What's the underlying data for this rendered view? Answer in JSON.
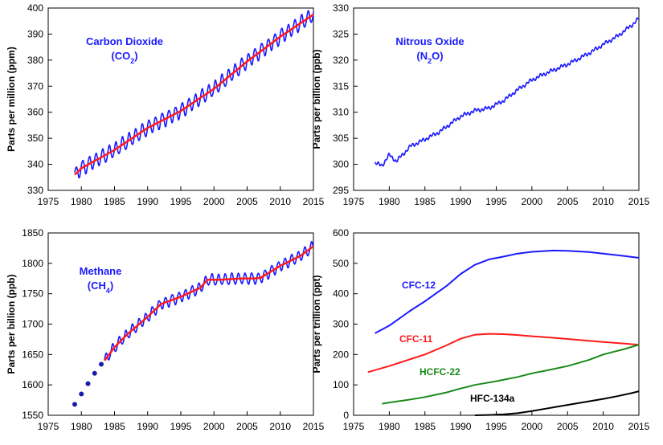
{
  "chart_data": [
    {
      "id": "co2",
      "type": "line",
      "ylabel": "Parts per million (ppm)",
      "xlim": [
        1975,
        2015
      ],
      "ylim": [
        330,
        400
      ],
      "xticks": [
        1975,
        1980,
        1985,
        1990,
        1995,
        2000,
        2005,
        2010,
        2015
      ],
      "yticks": [
        330,
        340,
        350,
        360,
        370,
        380,
        390,
        400
      ],
      "annotation": {
        "line1": "Carbon Dioxide",
        "line2_prefix": "(CO",
        "line2_sub": "2",
        "line2_suffix": ")"
      },
      "annotation_color": "#1a1aff",
      "series": [
        {
          "role": "monthly",
          "color": "#1a1aff",
          "x": [
            1979,
            1980,
            1985,
            1990,
            1995,
            2000,
            2005,
            2010,
            2015
          ],
          "y": [
            336,
            338.5,
            345.5,
            354,
            360.5,
            369,
            379.5,
            389,
            397.5
          ],
          "seasonal_amplitude": 2.8
        },
        {
          "role": "trend",
          "color": "#ff1a1a",
          "x": [
            1979,
            1980,
            1985,
            1990,
            1995,
            2000,
            2005,
            2010,
            2015
          ],
          "y": [
            336,
            338.5,
            345.5,
            354,
            360.5,
            369,
            379.5,
            389,
            397.5
          ]
        }
      ]
    },
    {
      "id": "n2o",
      "type": "line",
      "ylabel": "Parts per billion (ppb)",
      "xlim": [
        1975,
        2015
      ],
      "ylim": [
        295,
        330
      ],
      "xticks": [
        1975,
        1980,
        1985,
        1990,
        1995,
        2000,
        2005,
        2010,
        2015
      ],
      "yticks": [
        295,
        300,
        305,
        310,
        315,
        320,
        325,
        330
      ],
      "annotation": {
        "line1": "Nitrous Oxide",
        "line2_prefix": "(N",
        "line2_sub": "2",
        "line2_suffix": "O)"
      },
      "annotation_color": "#1a1aff",
      "series": [
        {
          "role": "monthly",
          "color": "#1a1aff",
          "x": [
            1978,
            1979,
            1980,
            1981,
            1983,
            1985,
            1987,
            1989,
            1990,
            1992,
            1994,
            1996,
            1998,
            2000,
            2002,
            2005,
            2008,
            2010,
            2012,
            2014,
            2015
          ],
          "y": [
            300.2,
            299.8,
            301.8,
            300.6,
            303.5,
            304.8,
            306.2,
            308.2,
            309.2,
            310.3,
            310.8,
            312.2,
            314.3,
            316.2,
            317.5,
            319.2,
            321.3,
            323,
            324.6,
            326.7,
            328
          ],
          "noise_amplitude": 0.45
        }
      ]
    },
    {
      "id": "ch4",
      "type": "line",
      "ylabel": "Parts per billion (ppb)",
      "xlim": [
        1975,
        2015
      ],
      "ylim": [
        1550,
        1850
      ],
      "xticks": [
        1975,
        1980,
        1985,
        1990,
        1995,
        2000,
        2005,
        2010,
        2015
      ],
      "yticks": [
        1550,
        1600,
        1650,
        1700,
        1750,
        1800,
        1850
      ],
      "annotation": {
        "line1": "Methane",
        "line2_prefix": "(CH",
        "line2_sub": "4",
        "line2_suffix": ")"
      },
      "annotation_color": "#1a1aff",
      "series": [
        {
          "role": "early-points",
          "color": "#1a1aaa",
          "x": [
            1979,
            1980,
            1981,
            1982,
            1983
          ],
          "y": [
            1568,
            1585,
            1602,
            1619,
            1634
          ]
        },
        {
          "role": "monthly",
          "color": "#1a1aff",
          "x": [
            1983.5,
            1985,
            1987,
            1990,
            1992,
            1995,
            1998,
            1999,
            2001,
            2004,
            2006,
            2007,
            2010,
            2013,
            2015
          ],
          "y": [
            1640,
            1662,
            1684,
            1712,
            1733,
            1745,
            1760,
            1773,
            1773,
            1775,
            1775,
            1776,
            1796,
            1812,
            1828
          ],
          "seasonal_amplitude": 9
        },
        {
          "role": "trend",
          "color": "#ff1a1a",
          "x": [
            1983.5,
            1985,
            1987,
            1990,
            1992,
            1995,
            1998,
            1999,
            2001,
            2004,
            2006,
            2007,
            2010,
            2013,
            2015
          ],
          "y": [
            1640,
            1662,
            1684,
            1712,
            1733,
            1745,
            1760,
            1773,
            1773,
            1775,
            1775,
            1776,
            1796,
            1812,
            1828
          ]
        }
      ]
    },
    {
      "id": "cfc",
      "type": "line",
      "ylabel": "Parts per trillion (ppt)",
      "xlim": [
        1975,
        2015
      ],
      "ylim": [
        0,
        600
      ],
      "xticks": [
        1975,
        1980,
        1985,
        1990,
        1995,
        2000,
        2005,
        2010,
        2015
      ],
      "yticks": [
        0,
        100,
        200,
        300,
        400,
        500,
        600
      ],
      "series": [
        {
          "name": "CFC-12",
          "color": "#1a1aff",
          "x": [
            1978,
            1980,
            1983,
            1985,
            1988,
            1990,
            1992,
            1994,
            1996,
            1998,
            2000,
            2003,
            2005,
            2008,
            2010,
            2013,
            2015
          ],
          "y": [
            270,
            295,
            345,
            375,
            425,
            465,
            495,
            513,
            522,
            532,
            538,
            542,
            541,
            537,
            532,
            524,
            518
          ]
        },
        {
          "name": "CFC-11",
          "color": "#ff1a1a",
          "x": [
            1977,
            1980,
            1983,
            1985,
            1988,
            1990,
            1992,
            1994,
            1996,
            1998,
            2000,
            2003,
            2005,
            2008,
            2010,
            2013,
            2015
          ],
          "y": [
            142,
            162,
            185,
            200,
            230,
            252,
            265,
            268,
            267,
            264,
            260,
            255,
            251,
            245,
            241,
            236,
            232
          ]
        },
        {
          "name": "HCFC-22",
          "color": "#1a8a1a",
          "x": [
            1979,
            1980,
            1983,
            1985,
            1988,
            1990,
            1992,
            1995,
            1998,
            2000,
            2003,
            2005,
            2008,
            2010,
            2013,
            2015
          ],
          "y": [
            38,
            42,
            52,
            60,
            75,
            88,
            100,
            112,
            126,
            138,
            152,
            162,
            182,
            200,
            218,
            232
          ]
        },
        {
          "name": "HFC-134a",
          "color": "#000000",
          "x": [
            1992,
            1994,
            1996,
            1998,
            2000,
            2002,
            2004,
            2006,
            2008,
            2010,
            2012,
            2014,
            2015
          ],
          "y": [
            0,
            1,
            3,
            7,
            14,
            22,
            30,
            38,
            46,
            54,
            63,
            73,
            79
          ]
        }
      ]
    }
  ]
}
